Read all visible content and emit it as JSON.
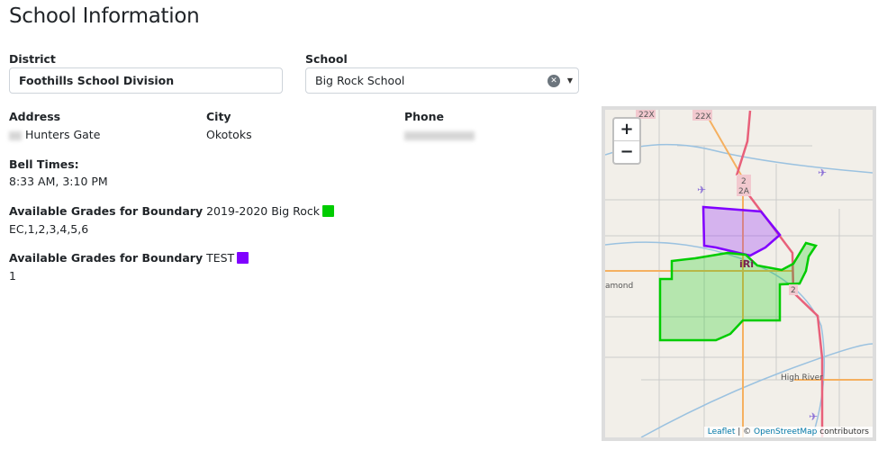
{
  "page_title": "School Information",
  "district": {
    "label": "District",
    "value": "Foothills School Division"
  },
  "school": {
    "label": "School",
    "value": "Big Rock School",
    "clear_icon": "clear-icon",
    "dropdown_icon": "caret-down-icon"
  },
  "address": {
    "label": "Address",
    "value": "Hunters Gate"
  },
  "city": {
    "label": "City",
    "value": "Okotoks"
  },
  "phone": {
    "label": "Phone"
  },
  "bell": {
    "label": "Bell Times:",
    "value": "8:33 AM, 3:10 PM"
  },
  "boundaries": [
    {
      "label": "Available Grades for Boundary",
      "name": "2019-2020 Big Rock",
      "color": "#00cc00",
      "grades": "EC,1,2,3,4,5,6"
    },
    {
      "label": "Available Grades for Boundary",
      "name": "TEST",
      "color": "#8000ff",
      "grades": "1"
    }
  ],
  "map": {
    "zoom_in": "+",
    "zoom_out": "−",
    "labels": {
      "hw1": "22X",
      "hw2": "22X",
      "hw3a": "2",
      "hw3b": "2A",
      "hw4": "2",
      "town1": "amond",
      "town2": "High River"
    },
    "attribution": {
      "leaflet": "Leaflet",
      "sep": " | © ",
      "osm": "OpenStreetMap",
      "suffix": " contributors"
    }
  }
}
